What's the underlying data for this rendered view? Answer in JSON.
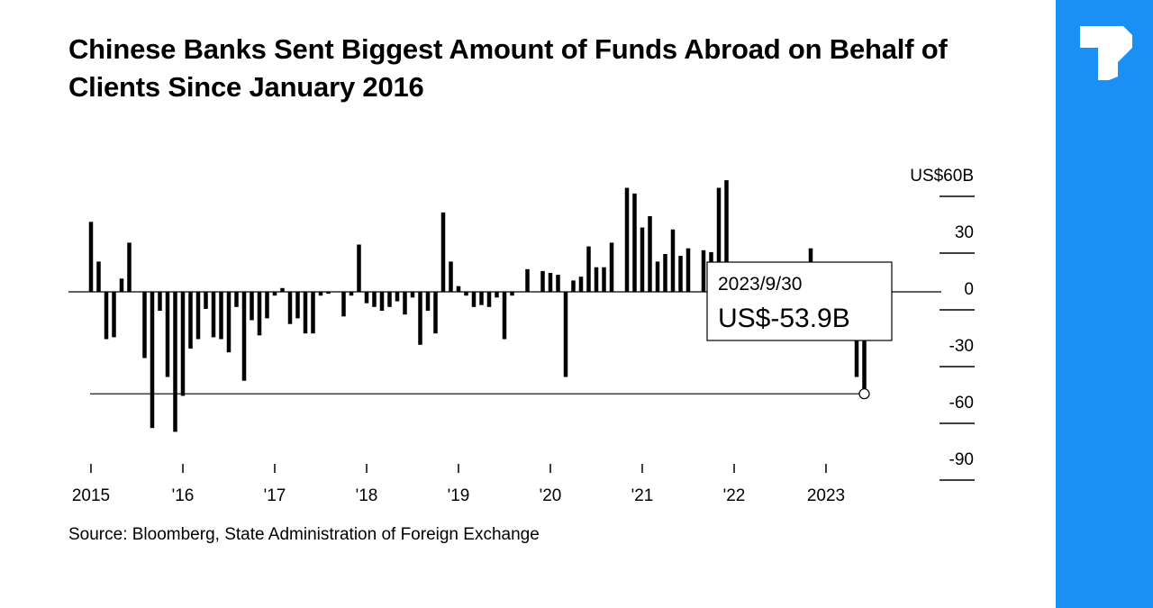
{
  "title": "Chinese Banks Sent Biggest Amount of Funds Abroad on Behalf of Clients Since January 2016",
  "source": "Source: Bloomberg, State Administration of Foreign Exchange",
  "brand": {
    "sidebar_color": "#1a90f5",
    "logo_icon": "t-logo-icon"
  },
  "chart_data": {
    "type": "bar",
    "unit_label": "US$60B",
    "ylim": [
      -90,
      60
    ],
    "y_ticks": [
      60,
      30,
      0,
      -30,
      -60,
      -90
    ],
    "y_tick_labels": [
      "US$60B",
      "30",
      "0",
      "-30",
      "-60",
      "-90"
    ],
    "x_ticks": [
      {
        "month": "2015-01",
        "label": "2015"
      },
      {
        "month": "2016-01",
        "label": "'16"
      },
      {
        "month": "2017-01",
        "label": "'17"
      },
      {
        "month": "2018-01",
        "label": "'18"
      },
      {
        "month": "2019-01",
        "label": "'19"
      },
      {
        "month": "2020-01",
        "label": "'20"
      },
      {
        "month": "2021-01",
        "label": "'21"
      },
      {
        "month": "2022-01",
        "label": "'22"
      },
      {
        "month": "2023-01",
        "label": "2023"
      }
    ],
    "start_month": "2015-01",
    "values": [
      37,
      16,
      -25,
      -24,
      7,
      26,
      0,
      -35,
      -72,
      -10,
      -45,
      -74,
      -55,
      -30,
      -25,
      -9,
      -24,
      -25,
      -32,
      -8,
      -47,
      -15,
      -23,
      -14,
      -2,
      2,
      -17,
      -14,
      -22,
      -22,
      -2,
      -1,
      0,
      -13,
      -2,
      25,
      -6,
      -8,
      -10,
      -8,
      -5,
      -12,
      -3,
      -28,
      -10,
      -22,
      42,
      16,
      3,
      -2,
      -8,
      -7,
      -8,
      -3,
      -25,
      -2,
      0,
      12,
      0,
      11,
      10,
      9,
      -45,
      6,
      8,
      24,
      13,
      13,
      26,
      0,
      55,
      52,
      34,
      40,
      16,
      20,
      33,
      19,
      23,
      0,
      22,
      21,
      55,
      59,
      0,
      2,
      0,
      0,
      0,
      0,
      0,
      0,
      0,
      11,
      23,
      0,
      0,
      0,
      0,
      0,
      -45,
      -53.9
    ],
    "callout": {
      "date": "2023/9/30",
      "value": "US$-53.9B",
      "value_num": -53.9
    }
  }
}
